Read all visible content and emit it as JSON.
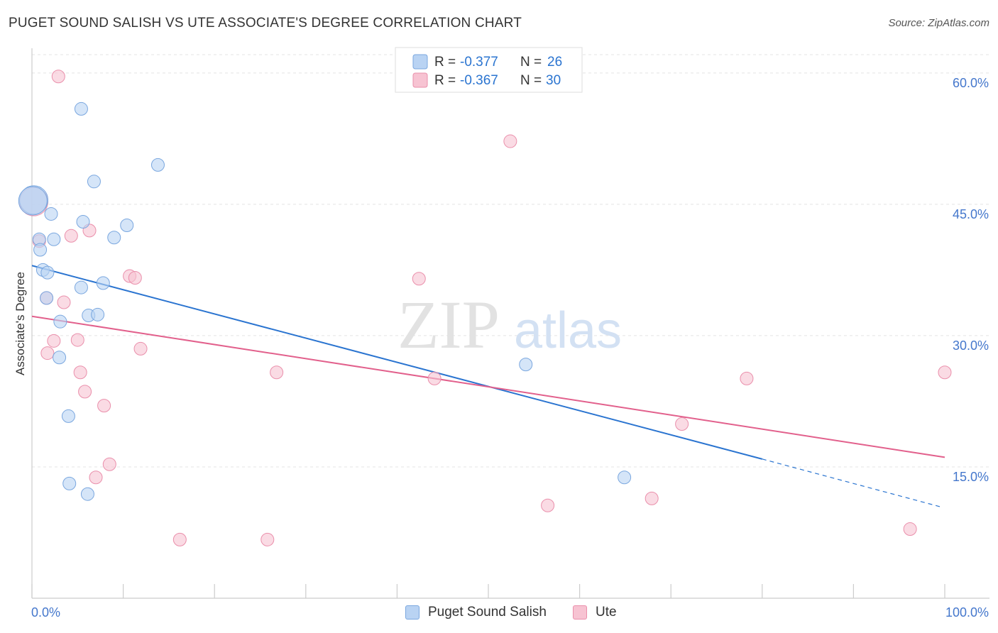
{
  "header": {
    "title": "PUGET SOUND SALISH VS UTE ASSOCIATE'S DEGREE CORRELATION CHART",
    "source": "Source: ZipAtlas.com"
  },
  "watermark": {
    "part1": "ZIP",
    "part2": "atlas"
  },
  "legend_top": {
    "rows": [
      {
        "r_label": "R =",
        "r_value": "-0.377",
        "n_label": "N =",
        "n_value": "26"
      },
      {
        "r_label": "R =",
        "r_value": "-0.367",
        "n_label": "N =",
        "n_value": "30"
      }
    ]
  },
  "chart_data": {
    "type": "scatter",
    "title": "PUGET SOUND SALISH VS UTE ASSOCIATE'S DEGREE CORRELATION CHART",
    "xlabel": "",
    "ylabel": "Associate's Degree",
    "xlim": [
      0,
      100
    ],
    "ylim": [
      0,
      62.5
    ],
    "x_tick_labels": [
      "0.0%",
      "100.0%"
    ],
    "y_ticks": [
      15,
      30,
      45,
      60
    ],
    "y_tick_labels": [
      "15.0%",
      "30.0%",
      "45.0%",
      "60.0%"
    ],
    "grid": true,
    "legend_position": "top-center",
    "colors": {
      "blue_fill": "#b9d3f3",
      "blue_stroke": "#7aa7df",
      "blue_line": "#2a74d0",
      "pink_fill": "#f7c3d2",
      "pink_stroke": "#ea8fab",
      "pink_line": "#e2608c",
      "axis_text": "#4477cc"
    },
    "series": [
      {
        "name": "Puget Sound Salish",
        "color": "#b9d3f3",
        "points": [
          [
            0.2,
            45.5
          ],
          [
            0.8,
            41.0
          ],
          [
            0.9,
            39.8
          ],
          [
            1.2,
            37.5
          ],
          [
            1.7,
            37.2
          ],
          [
            1.6,
            34.3
          ],
          [
            2.1,
            43.9
          ],
          [
            2.4,
            41.0
          ],
          [
            3.1,
            31.6
          ],
          [
            3.0,
            27.5
          ],
          [
            5.4,
            55.9
          ],
          [
            5.6,
            43.0
          ],
          [
            6.8,
            47.6
          ],
          [
            5.4,
            35.5
          ],
          [
            6.2,
            32.3
          ],
          [
            7.2,
            32.4
          ],
          [
            7.8,
            36.0
          ],
          [
            9.0,
            41.2
          ],
          [
            10.4,
            42.6
          ],
          [
            13.8,
            49.5
          ],
          [
            4.0,
            20.8
          ],
          [
            4.1,
            13.1
          ],
          [
            6.1,
            11.9
          ],
          [
            54.1,
            26.7
          ],
          [
            64.9,
            13.8
          ],
          [
            0.1,
            45.4
          ]
        ]
      },
      {
        "name": "Ute",
        "color": "#f7c3d2",
        "points": [
          [
            0.2,
            45.3
          ],
          [
            0.8,
            40.8
          ],
          [
            2.9,
            59.6
          ],
          [
            1.6,
            34.3
          ],
          [
            1.7,
            28.0
          ],
          [
            2.4,
            29.4
          ],
          [
            3.5,
            33.8
          ],
          [
            4.3,
            41.4
          ],
          [
            5.0,
            29.5
          ],
          [
            5.3,
            25.8
          ],
          [
            5.8,
            23.6
          ],
          [
            6.3,
            42.0
          ],
          [
            7.9,
            22.0
          ],
          [
            8.5,
            15.3
          ],
          [
            10.7,
            36.8
          ],
          [
            11.3,
            36.6
          ],
          [
            11.9,
            28.5
          ],
          [
            7.0,
            13.8
          ],
          [
            16.2,
            6.7
          ],
          [
            25.8,
            6.7
          ],
          [
            26.8,
            25.8
          ],
          [
            42.4,
            36.5
          ],
          [
            44.1,
            25.1
          ],
          [
            52.4,
            52.2
          ],
          [
            56.5,
            10.6
          ],
          [
            67.9,
            11.4
          ],
          [
            71.2,
            19.9
          ],
          [
            78.3,
            25.1
          ],
          [
            96.2,
            7.9
          ],
          [
            100.0,
            25.8
          ]
        ]
      }
    ],
    "trendlines": [
      {
        "series": "Puget Sound Salish",
        "x": [
          0,
          80
        ],
        "y": [
          38.0,
          15.9
        ],
        "dashed_to": [
          100,
          10.4
        ]
      },
      {
        "series": "Ute",
        "x": [
          0,
          100
        ],
        "y": [
          32.2,
          16.1
        ]
      }
    ]
  },
  "legend_bottom": {
    "items": [
      {
        "label": "Puget Sound Salish"
      },
      {
        "label": "Ute"
      }
    ]
  }
}
